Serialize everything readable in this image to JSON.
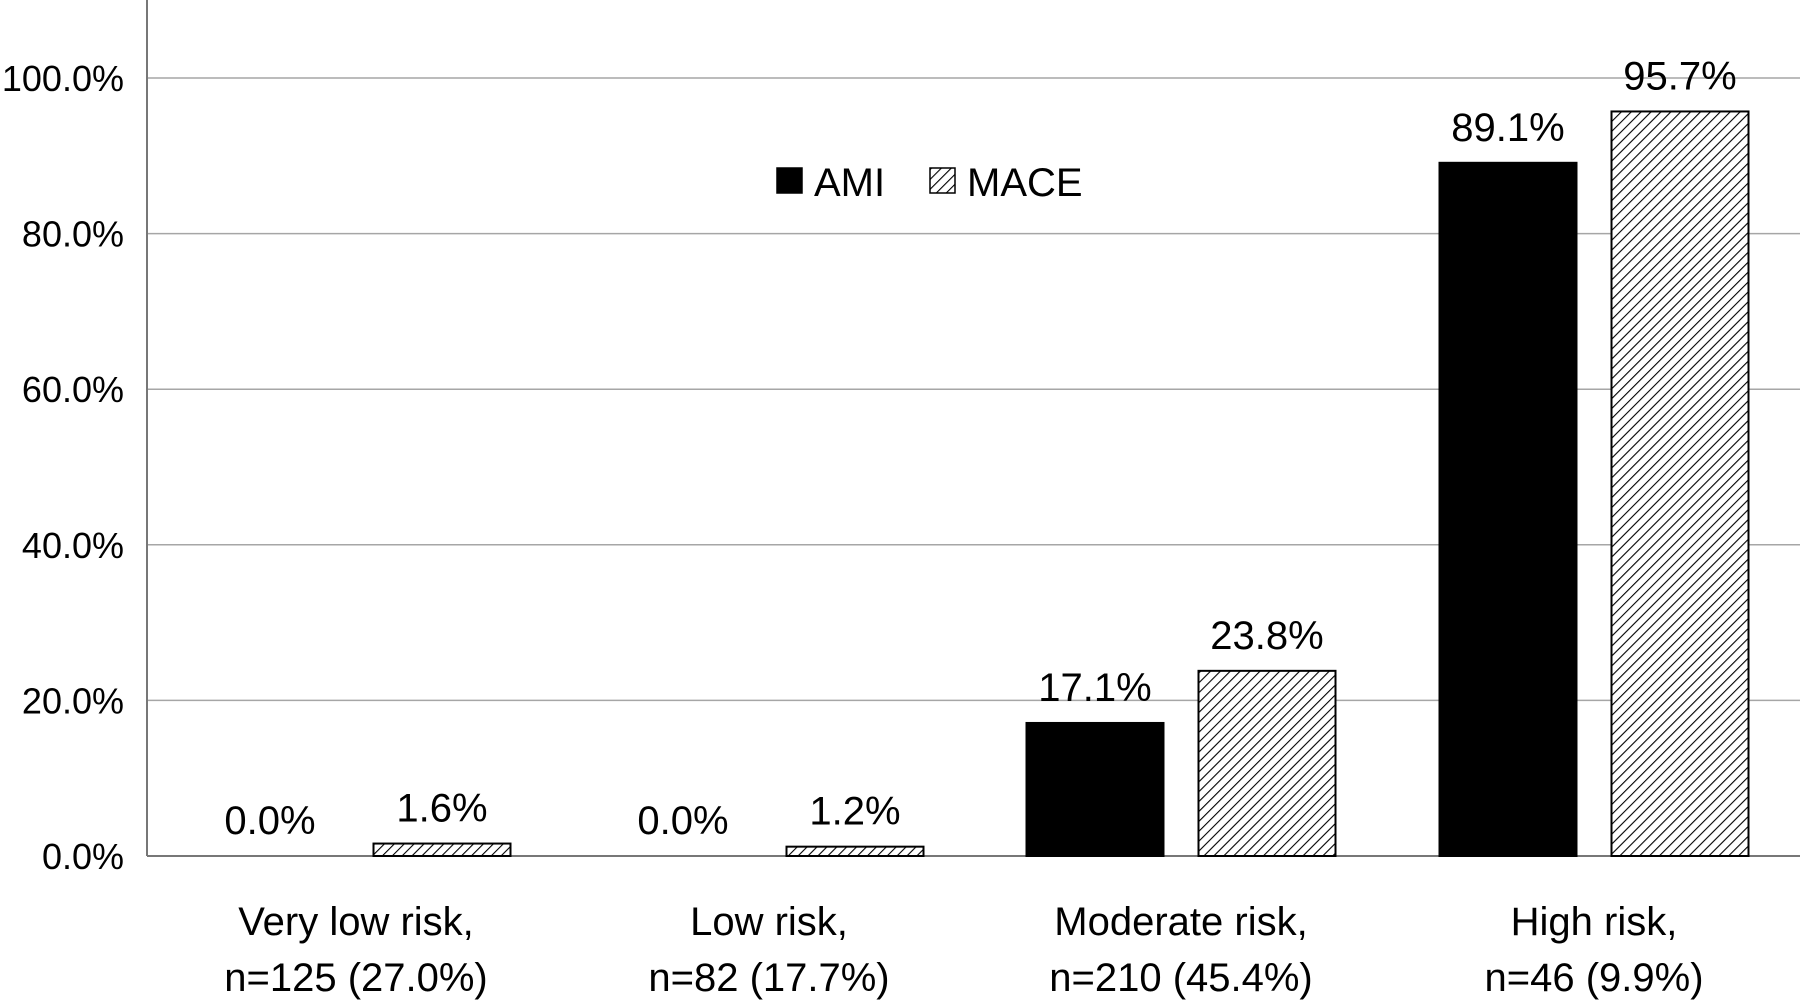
{
  "chart_data": {
    "type": "bar",
    "categories": [
      [
        "Very low risk,",
        "n=125 (27.0%)"
      ],
      [
        "Low risk,",
        "n=82 (17.7%)"
      ],
      [
        "Moderate risk,",
        "n=210 (45.4%)"
      ],
      [
        "High risk,",
        "n=46 (9.9%)"
      ]
    ],
    "series": [
      {
        "name": "AMI",
        "values": [
          0.0,
          0.0,
          17.1,
          89.1
        ],
        "labels": [
          "0.0%",
          "0.0%",
          "17.1%",
          "89.1%"
        ],
        "fill": "#000000",
        "pattern": "solid"
      },
      {
        "name": "MACE",
        "values": [
          1.6,
          1.2,
          23.8,
          95.7
        ],
        "labels": [
          "1.6%",
          "1.2%",
          "23.8%",
          "95.7%"
        ],
        "fill": "#ffffff",
        "pattern": "diagonal-hatch"
      }
    ],
    "yticks": [
      "0.0%",
      "20.0%",
      "40.0%",
      "60.0%",
      "80.0%",
      "100.0%"
    ],
    "ytick_values": [
      0,
      20,
      40,
      60,
      80,
      100
    ],
    "ylim": [
      0,
      110
    ],
    "grid": true,
    "legend_position": "top-center",
    "title": "",
    "xlabel": "",
    "ylabel": ""
  }
}
